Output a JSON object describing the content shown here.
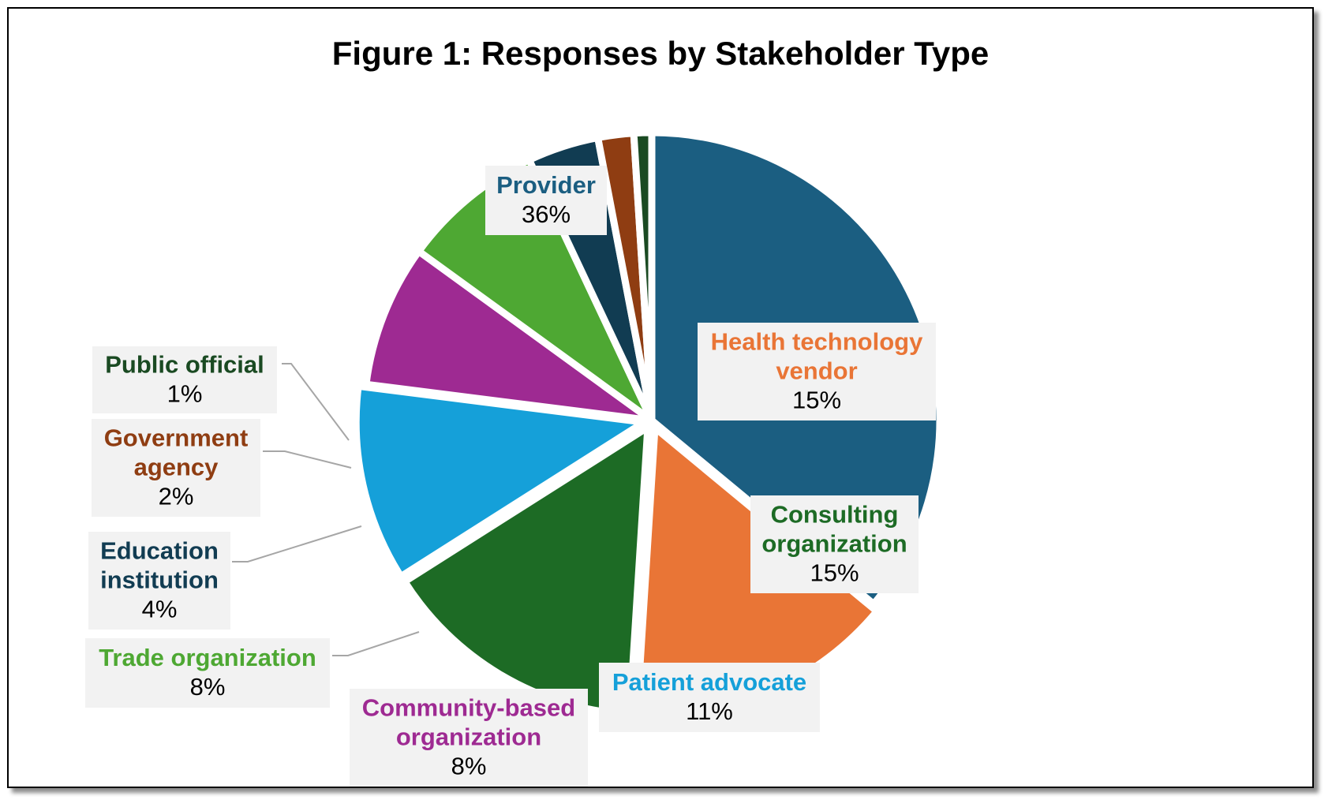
{
  "chart_data": {
    "type": "pie",
    "title": "Figure 1: Responses by Stakeholder Type",
    "slices": [
      {
        "key": "provider",
        "label_lines": [
          "Provider"
        ],
        "percent_label": "36%",
        "value": 36,
        "color": "#1b5e81"
      },
      {
        "key": "health-technology-vendor",
        "label_lines": [
          "Health technology",
          "vendor"
        ],
        "percent_label": "15%",
        "value": 15,
        "color": "#e97536"
      },
      {
        "key": "consulting-organization",
        "label_lines": [
          "Consulting",
          "organization"
        ],
        "percent_label": "15%",
        "value": 15,
        "color": "#1d6b25"
      },
      {
        "key": "patient-advocate",
        "label_lines": [
          "Patient advocate"
        ],
        "percent_label": "11%",
        "value": 11,
        "color": "#15a0d9"
      },
      {
        "key": "community-based-organization",
        "label_lines": [
          "Community-based",
          "organization"
        ],
        "percent_label": "8%",
        "value": 8,
        "color": "#9e2a92"
      },
      {
        "key": "trade-organization",
        "label_lines": [
          "Trade organization"
        ],
        "percent_label": "8%",
        "value": 8,
        "color": "#4ea833"
      },
      {
        "key": "education-institution",
        "label_lines": [
          "Education",
          "institution"
        ],
        "percent_label": "4%",
        "value": 4,
        "color": "#113c52"
      },
      {
        "key": "government-agency",
        "label_lines": [
          "Government",
          "agency"
        ],
        "percent_label": "2%",
        "value": 2,
        "color": "#8f3d12"
      },
      {
        "key": "public-official",
        "label_lines": [
          "Public official"
        ],
        "percent_label": "1%",
        "value": 1,
        "color": "#1a4a22"
      }
    ],
    "start_angle_deg": 270,
    "direction": "clockwise",
    "exploded": true,
    "legend": "none",
    "data_labels": "category name and percentage"
  }
}
